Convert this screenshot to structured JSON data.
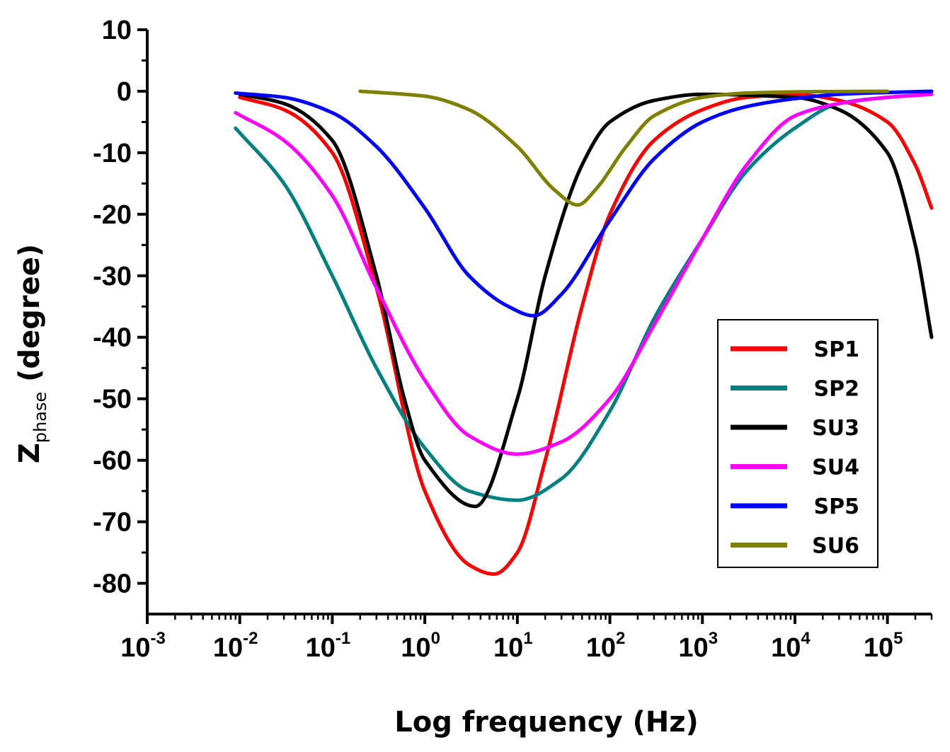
{
  "chart_data": {
    "type": "line",
    "title": "",
    "xlabel": "Log frequency (Hz)",
    "ylabel_main": "Z",
    "ylabel_sub": "phase",
    "ylabel_rest": " (degree)",
    "xscale": "log",
    "xlim": [
      0.001,
      300000
    ],
    "ylim": [
      -85,
      10
    ],
    "x_tick_base": "10",
    "x_ticks": [
      {
        "value": 0.001,
        "exp": "-3"
      },
      {
        "value": 0.01,
        "exp": "-2"
      },
      {
        "value": 0.1,
        "exp": "-1"
      },
      {
        "value": 1,
        "exp": "0"
      },
      {
        "value": 10,
        "exp": "1"
      },
      {
        "value": 100,
        "exp": "2"
      },
      {
        "value": 1000,
        "exp": "3"
      },
      {
        "value": 10000,
        "exp": "4"
      },
      {
        "value": 100000,
        "exp": "5"
      }
    ],
    "y_ticks": [
      {
        "value": 10,
        "label": "10"
      },
      {
        "value": 0,
        "label": "0"
      },
      {
        "value": -10,
        "label": "-10"
      },
      {
        "value": -20,
        "label": "-20"
      },
      {
        "value": -30,
        "label": "-30"
      },
      {
        "value": -40,
        "label": "-40"
      },
      {
        "value": -50,
        "label": "-50"
      },
      {
        "value": -60,
        "label": "-60"
      },
      {
        "value": -70,
        "label": "-70"
      },
      {
        "value": -80,
        "label": "-80"
      }
    ],
    "legend_position": "right",
    "series": [
      {
        "name": "SP1",
        "color": "#ff0000",
        "points": [
          [
            0.01,
            -1
          ],
          [
            0.03,
            -3
          ],
          [
            0.1,
            -10
          ],
          [
            0.3,
            -32
          ],
          [
            1,
            -65
          ],
          [
            3,
            -77
          ],
          [
            5.6,
            -78.5
          ],
          [
            10,
            -75
          ],
          [
            20,
            -60
          ],
          [
            50,
            -35
          ],
          [
            100,
            -20
          ],
          [
            300,
            -8
          ],
          [
            1000,
            -3
          ],
          [
            3000,
            -1
          ],
          [
            10000,
            -0.5
          ],
          [
            30000,
            -1.5
          ],
          [
            100000,
            -5
          ],
          [
            200000,
            -12
          ],
          [
            300000,
            -19
          ]
        ]
      },
      {
        "name": "SP2",
        "color": "#008080",
        "points": [
          [
            0.009,
            -6
          ],
          [
            0.03,
            -15
          ],
          [
            0.1,
            -30
          ],
          [
            0.3,
            -45
          ],
          [
            1,
            -58
          ],
          [
            3,
            -65
          ],
          [
            10,
            -66.5
          ],
          [
            30,
            -63
          ],
          [
            100,
            -52
          ],
          [
            300,
            -37
          ],
          [
            1000,
            -24
          ],
          [
            3000,
            -13
          ],
          [
            10000,
            -6
          ],
          [
            30000,
            -2
          ],
          [
            100000,
            -1
          ],
          [
            300000,
            -0.5
          ]
        ]
      },
      {
        "name": "SU3",
        "color": "#000000",
        "points": [
          [
            0.01,
            -0.5
          ],
          [
            0.03,
            -2
          ],
          [
            0.1,
            -8
          ],
          [
            0.3,
            -30
          ],
          [
            0.6,
            -50
          ],
          [
            1,
            -60
          ],
          [
            3.5,
            -67.5
          ],
          [
            10,
            -50
          ],
          [
            20,
            -30
          ],
          [
            50,
            -12
          ],
          [
            100,
            -5
          ],
          [
            300,
            -1.5
          ],
          [
            1000,
            -0.5
          ],
          [
            10000,
            -1
          ],
          [
            30000,
            -3
          ],
          [
            100000,
            -10
          ],
          [
            200000,
            -25
          ],
          [
            300000,
            -40
          ]
        ]
      },
      {
        "name": "SU4",
        "color": "#ff00ff",
        "points": [
          [
            0.009,
            -3.5
          ],
          [
            0.03,
            -8
          ],
          [
            0.1,
            -17
          ],
          [
            0.3,
            -32
          ],
          [
            1,
            -47
          ],
          [
            3,
            -56
          ],
          [
            10,
            -59
          ],
          [
            30,
            -57
          ],
          [
            100,
            -50
          ],
          [
            300,
            -38
          ],
          [
            1000,
            -24
          ],
          [
            3000,
            -12
          ],
          [
            10000,
            -4
          ],
          [
            30000,
            -2
          ],
          [
            100000,
            -1
          ],
          [
            300000,
            -0.5
          ]
        ]
      },
      {
        "name": "SP5",
        "color": "#0000ff",
        "points": [
          [
            0.009,
            -0.3
          ],
          [
            0.03,
            -1
          ],
          [
            0.1,
            -3.5
          ],
          [
            0.3,
            -9
          ],
          [
            1,
            -19
          ],
          [
            3,
            -30
          ],
          [
            8,
            -35
          ],
          [
            15,
            -36.5
          ],
          [
            30,
            -33
          ],
          [
            100,
            -21
          ],
          [
            300,
            -11
          ],
          [
            1000,
            -5
          ],
          [
            3000,
            -2.5
          ],
          [
            10000,
            -1.2
          ],
          [
            30000,
            -0.5
          ],
          [
            100000,
            -0.2
          ],
          [
            300000,
            0
          ]
        ]
      },
      {
        "name": "SU6",
        "color": "#808000",
        "points": [
          [
            0.2,
            0
          ],
          [
            1,
            -0.8
          ],
          [
            3,
            -3
          ],
          [
            10,
            -9
          ],
          [
            25,
            -16
          ],
          [
            45,
            -18.5
          ],
          [
            70,
            -16
          ],
          [
            150,
            -9
          ],
          [
            300,
            -4
          ],
          [
            1000,
            -1
          ],
          [
            3000,
            -0.3
          ],
          [
            10000,
            -0.1
          ],
          [
            100000,
            0
          ]
        ]
      }
    ]
  }
}
